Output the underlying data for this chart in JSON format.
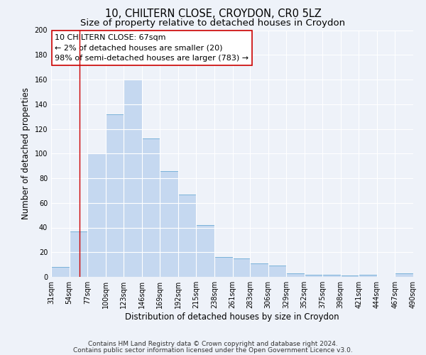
{
  "title": "10, CHILTERN CLOSE, CROYDON, CR0 5LZ",
  "subtitle": "Size of property relative to detached houses in Croydon",
  "xlabel": "Distribution of detached houses by size in Croydon",
  "ylabel": "Number of detached properties",
  "bin_labels": [
    "31sqm",
    "54sqm",
    "77sqm",
    "100sqm",
    "123sqm",
    "146sqm",
    "169sqm",
    "192sqm",
    "215sqm",
    "238sqm",
    "261sqm",
    "283sqm",
    "306sqm",
    "329sqm",
    "352sqm",
    "375sqm",
    "398sqm",
    "421sqm",
    "444sqm",
    "467sqm",
    "490sqm"
  ],
  "bar_values": [
    8,
    37,
    100,
    132,
    160,
    112,
    86,
    67,
    42,
    16,
    15,
    11,
    9,
    3,
    2,
    2,
    1,
    2,
    0,
    3
  ],
  "bin_edges": [
    31,
    54,
    77,
    100,
    123,
    146,
    169,
    192,
    215,
    238,
    261,
    283,
    306,
    329,
    352,
    375,
    398,
    421,
    444,
    467,
    490
  ],
  "bar_color": "#c5d8f0",
  "bar_edge_color": "#6aaad4",
  "vline_x": 67,
  "vline_color": "#cc0000",
  "ylim": [
    0,
    200
  ],
  "yticks": [
    0,
    20,
    40,
    60,
    80,
    100,
    120,
    140,
    160,
    180,
    200
  ],
  "annotation_line1": "10 CHILTERN CLOSE: 67sqm",
  "annotation_line2": "← 2% of detached houses are smaller (20)",
  "annotation_line3": "98% of semi-detached houses are larger (783) →",
  "footer_line1": "Contains HM Land Registry data © Crown copyright and database right 2024.",
  "footer_line2": "Contains public sector information licensed under the Open Government Licence v3.0.",
  "background_color": "#eef2f9",
  "grid_color": "#ffffff",
  "title_fontsize": 10.5,
  "subtitle_fontsize": 9.5,
  "axis_label_fontsize": 8.5,
  "tick_fontsize": 7,
  "annotation_fontsize": 8,
  "footer_fontsize": 6.5
}
